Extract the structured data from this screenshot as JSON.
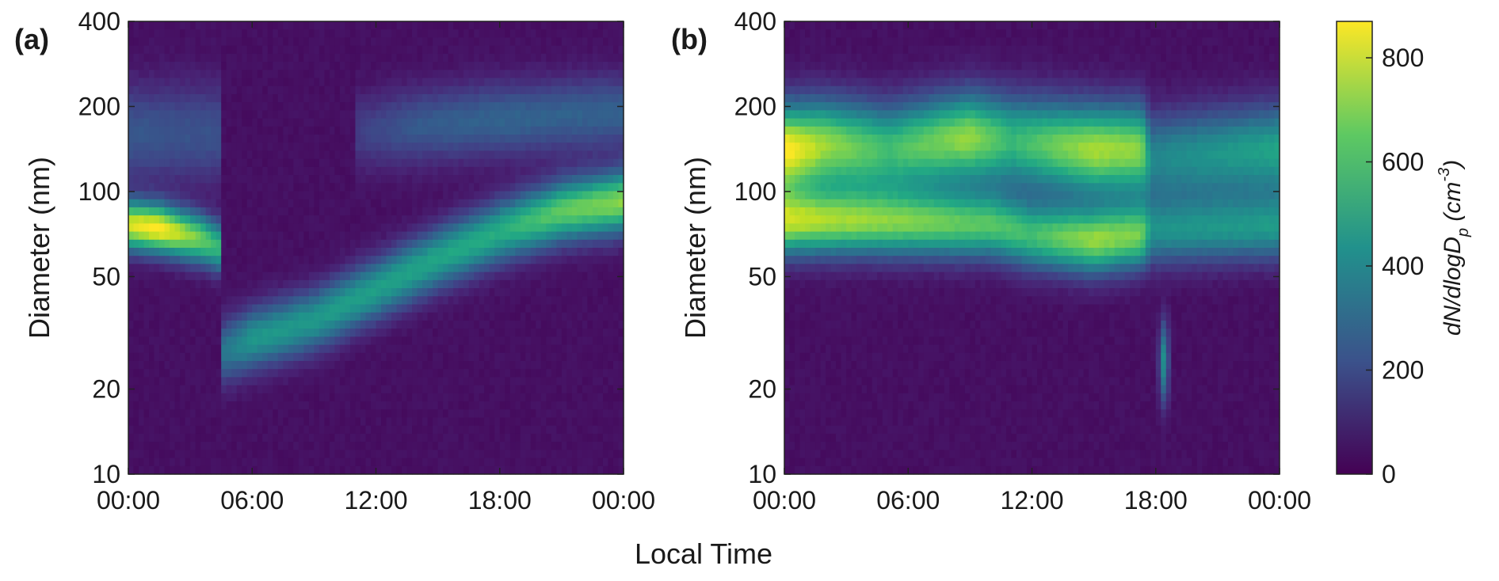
{
  "chart_data": [
    {
      "type": "heatmap",
      "panel_label": "(a)",
      "xlabel": "",
      "ylabel": "Diameter (nm)",
      "y_scale": "log",
      "ylim": [
        10,
        400
      ],
      "y_ticks": [
        10,
        20,
        50,
        100,
        200,
        400
      ],
      "y_tick_labels": [
        "10",
        "20",
        "50",
        "100",
        "200",
        "400"
      ],
      "xlim": [
        0,
        24
      ],
      "x_ticks": [
        0,
        6,
        12,
        18,
        24
      ],
      "x_tick_labels": [
        "00:00",
        "06:00",
        "12:00",
        "18:00",
        "00:00"
      ],
      "colorbar_range": [
        0,
        870
      ],
      "modes": [
        {
          "name": "accumulation",
          "points": [
            {
              "x": 0,
              "y_nm": 76,
              "value": 780
            },
            {
              "x": 1.5,
              "y_nm": 74,
              "value": 850
            },
            {
              "x": 3.5,
              "y_nm": 68,
              "value": 640
            },
            {
              "x": 4.5,
              "y_nm": 63,
              "value": 520
            }
          ],
          "sigma_log": 0.06
        },
        {
          "name": "upper-faint",
          "points": [
            {
              "x": 0,
              "y_nm": 160,
              "value": 200
            },
            {
              "x": 4.5,
              "y_nm": 160,
              "value": 180
            }
          ],
          "sigma_log": 0.12
        },
        {
          "name": "growing-band",
          "points": [
            {
              "x": 4.6,
              "y_nm": 27,
              "value": 300
            },
            {
              "x": 6,
              "y_nm": 30,
              "value": 420
            },
            {
              "x": 9,
              "y_nm": 35,
              "value": 430
            },
            {
              "x": 12,
              "y_nm": 45,
              "value": 450
            },
            {
              "x": 15,
              "y_nm": 58,
              "value": 470
            },
            {
              "x": 18,
              "y_nm": 72,
              "value": 500
            },
            {
              "x": 21,
              "y_nm": 85,
              "value": 620
            },
            {
              "x": 24,
              "y_nm": 92,
              "value": 680
            }
          ],
          "sigma_log": 0.075
        },
        {
          "name": "upper-band",
          "points": [
            {
              "x": 11,
              "y_nm": 160,
              "value": 120
            },
            {
              "x": 14,
              "y_nm": 170,
              "value": 210
            },
            {
              "x": 18,
              "y_nm": 180,
              "value": 240
            },
            {
              "x": 24,
              "y_nm": 190,
              "value": 230
            }
          ],
          "sigma_log": 0.09
        }
      ]
    },
    {
      "type": "heatmap",
      "panel_label": "(b)",
      "xlabel": "",
      "ylabel": "Diameter (nm)",
      "y_scale": "log",
      "ylim": [
        10,
        400
      ],
      "y_ticks": [
        10,
        20,
        50,
        100,
        200,
        400
      ],
      "y_tick_labels": [
        "10",
        "20",
        "50",
        "100",
        "200",
        "400"
      ],
      "xlim": [
        0,
        24
      ],
      "x_ticks": [
        0,
        6,
        12,
        18,
        24
      ],
      "x_tick_labels": [
        "00:00",
        "06:00",
        "12:00",
        "18:00",
        "00:00"
      ],
      "colorbar_range": [
        0,
        870
      ],
      "modes": [
        {
          "name": "upper-mode",
          "points": [
            {
              "x": 0,
              "y_nm": 140,
              "value": 860
            },
            {
              "x": 2,
              "y_nm": 145,
              "value": 700
            },
            {
              "x": 5,
              "y_nm": 140,
              "value": 560
            },
            {
              "x": 9,
              "y_nm": 155,
              "value": 700
            },
            {
              "x": 11,
              "y_nm": 150,
              "value": 540
            },
            {
              "x": 15,
              "y_nm": 140,
              "value": 720
            },
            {
              "x": 17.3,
              "y_nm": 140,
              "value": 680
            },
            {
              "x": 17.8,
              "y_nm": 130,
              "value": 360
            },
            {
              "x": 24,
              "y_nm": 140,
              "value": 470
            }
          ],
          "sigma_log": 0.11
        },
        {
          "name": "lower-mode",
          "points": [
            {
              "x": 0,
              "y_nm": 78,
              "value": 720
            },
            {
              "x": 4,
              "y_nm": 78,
              "value": 660
            },
            {
              "x": 10,
              "y_nm": 76,
              "value": 590
            },
            {
              "x": 12,
              "y_nm": 70,
              "value": 560
            },
            {
              "x": 15,
              "y_nm": 67,
              "value": 690
            },
            {
              "x": 17.3,
              "y_nm": 70,
              "value": 640
            },
            {
              "x": 17.8,
              "y_nm": 72,
              "value": 380
            },
            {
              "x": 24,
              "y_nm": 75,
              "value": 420
            }
          ],
          "sigma_log": 0.08
        },
        {
          "name": "plume",
          "points": [
            {
              "x": 18.4,
              "y_nm": 25,
              "value": 420
            }
          ],
          "sigma_log": 0.1
        }
      ]
    }
  ],
  "colorbar": {
    "label_main": "dN/dlogD",
    "label_sub": "p",
    "label_unit": "(cm",
    "label_exp": "-3",
    "label_close": ")",
    "ticks": [
      0,
      200,
      400,
      600,
      800
    ],
    "tick_labels": [
      "0",
      "200",
      "400",
      "600",
      "800"
    ],
    "range": [
      0,
      870
    ],
    "colormap": "viridis"
  },
  "shared_xlabel": "Local Time"
}
